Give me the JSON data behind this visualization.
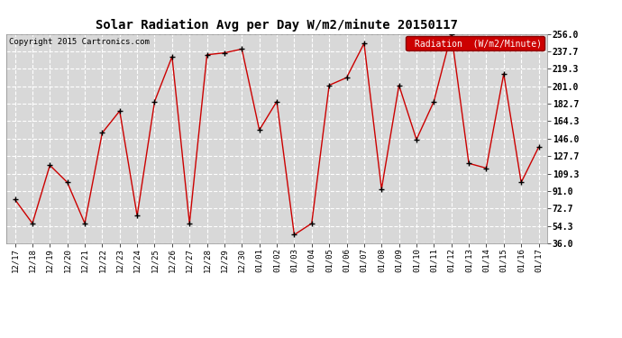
{
  "title": "Solar Radiation Avg per Day W/m2/minute 20150117",
  "copyright": "Copyright 2015 Cartronics.com",
  "legend_label": "Radiation  (W/m2/Minute)",
  "labels": [
    "12/17",
    "12/18",
    "12/19",
    "12/20",
    "12/21",
    "12/22",
    "12/23",
    "12/24",
    "12/25",
    "12/26",
    "12/27",
    "12/28",
    "12/29",
    "12/30",
    "01/01",
    "01/02",
    "01/03",
    "01/04",
    "01/05",
    "01/06",
    "01/07",
    "01/08",
    "01/09",
    "01/10",
    "01/11",
    "01/12",
    "01/13",
    "01/14",
    "01/15",
    "01/16",
    "01/17"
  ],
  "values": [
    82,
    57,
    118,
    100,
    57,
    152,
    175,
    65,
    185,
    232,
    57,
    234,
    236,
    240,
    155,
    185,
    45,
    57,
    202,
    210,
    246,
    93,
    202,
    145,
    185,
    256,
    120,
    115,
    214,
    100,
    137
  ],
  "ylim": [
    36.0,
    256.0
  ],
  "yticks": [
    36.0,
    54.3,
    72.7,
    91.0,
    109.3,
    127.7,
    146.0,
    164.3,
    182.7,
    201.0,
    219.3,
    237.7,
    256.0
  ],
  "line_color": "#cc0000",
  "marker_color": "#000000",
  "bg_color": "#d8d8d8",
  "plot_bg_color": "#d8d8d8",
  "fig_bg_color": "#ffffff",
  "grid_color": "#ffffff",
  "title_fontsize": 10,
  "copyright_fontsize": 6.5,
  "tick_fontsize": 6.5,
  "ytick_fontsize": 7,
  "legend_bg": "#cc0000",
  "legend_text_color": "#ffffff",
  "legend_fontsize": 7
}
